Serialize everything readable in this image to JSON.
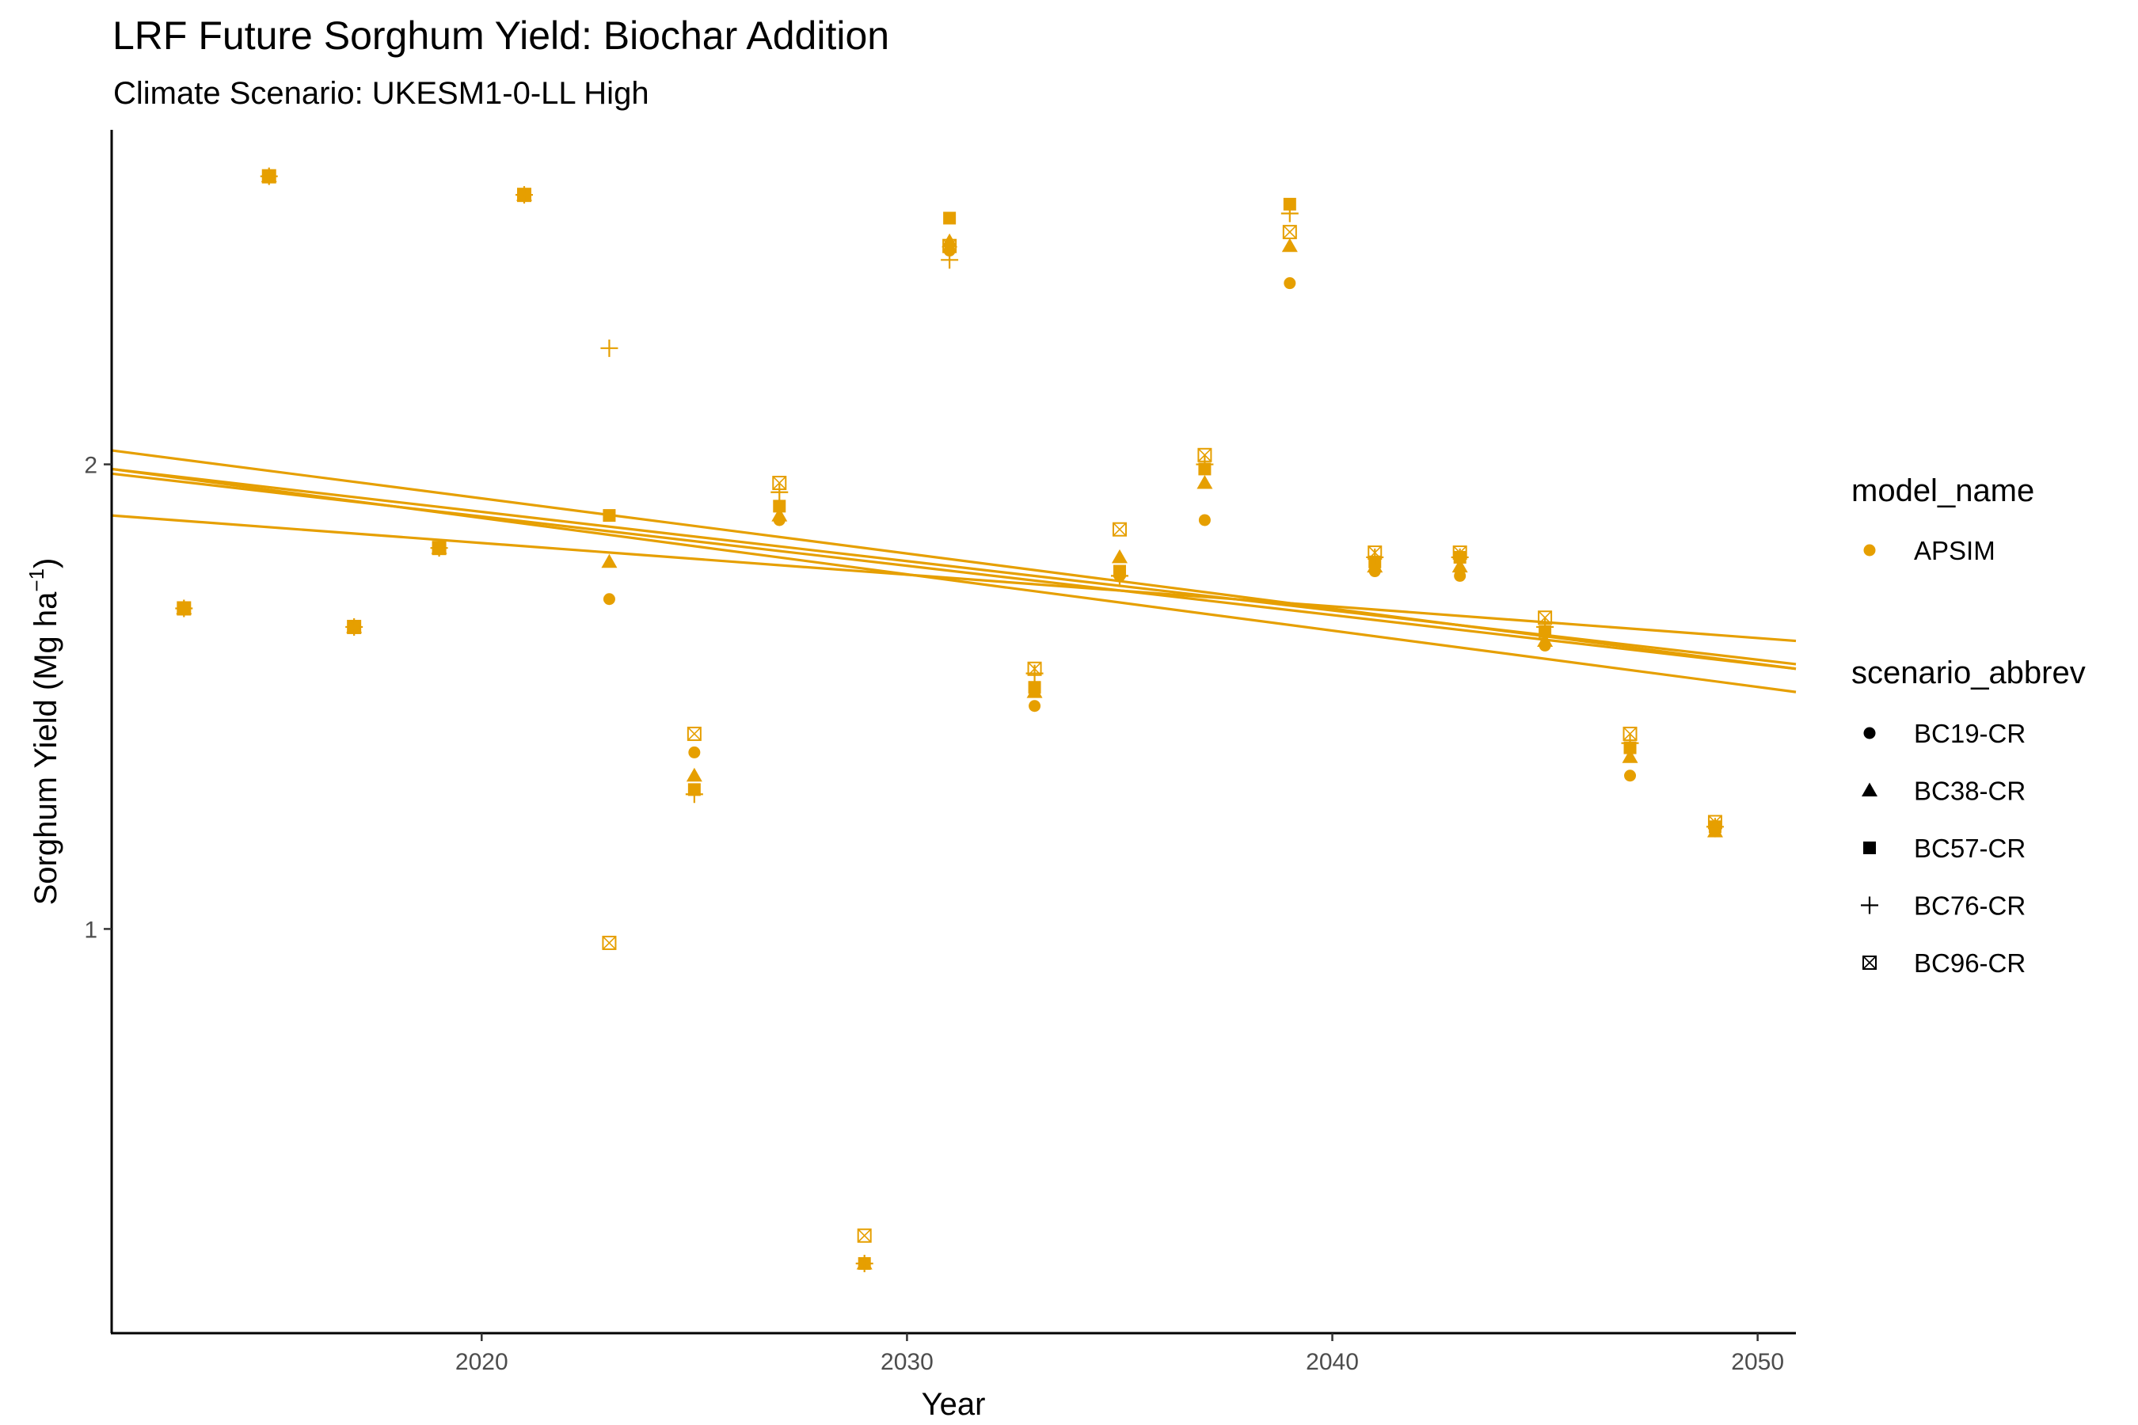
{
  "chart_data": {
    "type": "scatter",
    "title": "LRF Future Sorghum Yield: Biochar Addition",
    "subtitle": "Climate Scenario: UKESM1-0-LL High",
    "xlabel": "Year",
    "ylabel_main": "Sorghum Yield (Mg ha",
    "ylabel_sup": "−1",
    "ylabel_close": ")",
    "xlim": [
      2011.3,
      2050.9
    ],
    "ylim": [
      0.13,
      2.72
    ],
    "x_ticks": [
      2020,
      2030,
      2040,
      2050
    ],
    "y_ticks": [
      1,
      2
    ],
    "grid": false,
    "color": "#E69F00",
    "legend_position": "right",
    "legend_model": {
      "title": "model_name",
      "entries": [
        "APSIM"
      ]
    },
    "legend_scenario": {
      "title": "scenario_abbrev",
      "entries": [
        {
          "label": "BC19-CR",
          "shape": "circle"
        },
        {
          "label": "BC38-CR",
          "shape": "triangle"
        },
        {
          "label": "BC57-CR",
          "shape": "square"
        },
        {
          "label": "BC76-CR",
          "shape": "plus"
        },
        {
          "label": "BC96-CR",
          "shape": "boxx"
        }
      ]
    },
    "x": [
      2013,
      2015,
      2017,
      2019,
      2021,
      2023,
      2025,
      2027,
      2029,
      2031,
      2033,
      2035,
      2037,
      2039,
      2041,
      2043,
      2045,
      2047,
      2049
    ],
    "series": [
      {
        "name": "BC19-CR",
        "shape": "circle",
        "values": [
          1.69,
          2.62,
          1.65,
          1.82,
          2.58,
          1.71,
          1.38,
          1.88,
          0.28,
          2.46,
          1.48,
          1.76,
          1.88,
          2.39,
          1.77,
          1.76,
          1.61,
          1.33,
          1.21
        ]
      },
      {
        "name": "BC38-CR",
        "shape": "triangle",
        "values": [
          1.69,
          2.62,
          1.65,
          1.82,
          2.58,
          1.79,
          1.33,
          1.89,
          0.28,
          2.48,
          1.51,
          1.8,
          1.96,
          2.47,
          1.78,
          1.78,
          1.62,
          1.37,
          1.21
        ]
      },
      {
        "name": "BC57-CR",
        "shape": "square",
        "values": [
          1.69,
          2.62,
          1.65,
          1.82,
          2.58,
          1.89,
          1.3,
          1.91,
          0.28,
          2.53,
          1.52,
          1.77,
          1.99,
          2.56,
          1.79,
          1.8,
          1.64,
          1.39,
          1.22
        ]
      },
      {
        "name": "BC76-CR",
        "shape": "plus",
        "values": [
          1.69,
          2.62,
          1.65,
          1.82,
          2.58,
          2.25,
          1.29,
          1.94,
          0.28,
          2.44,
          1.55,
          1.76,
          2.0,
          2.54,
          1.8,
          1.8,
          1.65,
          1.4,
          1.22
        ]
      },
      {
        "name": "BC96-CR",
        "shape": "boxx",
        "values": [
          1.69,
          2.62,
          1.65,
          1.82,
          2.58,
          0.97,
          1.42,
          1.96,
          0.34,
          2.47,
          1.56,
          1.86,
          2.02,
          2.5,
          1.81,
          1.81,
          1.67,
          1.42,
          1.23
        ]
      }
    ],
    "trend_lines": [
      {
        "x": [
          2011.3,
          2050.9
        ],
        "y": [
          2.03,
          1.56
        ]
      },
      {
        "x": [
          2011.3,
          2050.9
        ],
        "y": [
          1.99,
          1.51
        ]
      },
      {
        "x": [
          2011.3,
          2050.9
        ],
        "y": [
          1.99,
          1.57
        ]
      },
      {
        "x": [
          2011.3,
          2050.9
        ],
        "y": [
          1.98,
          1.56
        ]
      },
      {
        "x": [
          2011.3,
          2050.9
        ],
        "y": [
          1.89,
          1.62
        ]
      }
    ]
  }
}
